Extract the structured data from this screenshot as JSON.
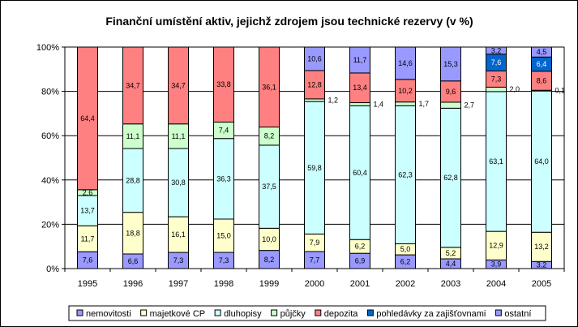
{
  "chart_data": {
    "type": "bar",
    "stacked": true,
    "percent_scale": true,
    "title": "Finanční umístění aktiv, jejichž zdrojem jsou technické rezervy (v %)",
    "xlabel": "",
    "ylabel": "",
    "ylim": [
      0,
      100
    ],
    "ytick_labels": [
      "0%",
      "20%",
      "40%",
      "60%",
      "80%",
      "100%"
    ],
    "grid": true,
    "legend": "bottom",
    "categories": [
      "1995",
      "1996",
      "1997",
      "1998",
      "1999",
      "2000",
      "2001",
      "2002",
      "2003",
      "2004",
      "2005"
    ],
    "series": [
      {
        "name": "nemovitosti",
        "color": "#9999ff",
        "values": [
          7.6,
          6.6,
          7.3,
          7.3,
          8.2,
          7.7,
          6.9,
          6.2,
          4.4,
          3.9,
          3.2
        ],
        "labels": [
          "7,6",
          "6,6",
          "7,3",
          "7,3",
          "8,2",
          "7,7",
          "6,9",
          "6,2",
          "4,4",
          "3,9",
          "3,2"
        ]
      },
      {
        "name": "majetkové CP",
        "color": "#ffffcc",
        "values": [
          11.7,
          18.8,
          16.1,
          15.0,
          10.0,
          7.9,
          6.2,
          5.0,
          5.2,
          12.9,
          13.2
        ],
        "labels": [
          "11,7",
          "18,8",
          "16,1",
          "15,0",
          "10,0",
          "7,9",
          "6,2",
          "5,0",
          "5,2",
          "12,9",
          "13,2"
        ]
      },
      {
        "name": "dluhopisy",
        "color": "#ccffff",
        "values": [
          13.7,
          28.8,
          30.8,
          36.3,
          37.5,
          59.8,
          60.4,
          62.3,
          62.8,
          63.1,
          64.0
        ],
        "labels": [
          "13,7",
          "28,8",
          "30,8",
          "36,3",
          "37,5",
          "59,8",
          "60,4",
          "62,3",
          "62,8",
          "63,1",
          "64,0"
        ]
      },
      {
        "name": "půjčky",
        "color": "#ccffcc",
        "values": [
          2.6,
          11.1,
          11.1,
          7.4,
          8.2,
          1.2,
          1.4,
          1.7,
          2.7,
          2.0,
          0.1
        ],
        "labels": [
          "2,6",
          "11,1",
          "11,1",
          "7,4",
          "8,2",
          "1,2",
          "1,4",
          "1,7",
          "2,7",
          "2,0",
          "0,1"
        ]
      },
      {
        "name": "depozita",
        "color": "#ff8080",
        "values": [
          64.4,
          34.7,
          34.7,
          33.8,
          36.1,
          12.8,
          13.4,
          10.2,
          9.6,
          7.3,
          8.6
        ],
        "labels": [
          "64,4",
          "34,7",
          "34,7",
          "33,8",
          "36,1",
          "12,8",
          "13,4",
          "10,2",
          "9,6",
          "7,3",
          "8,6"
        ]
      },
      {
        "name": "pohledávky za zajišťovnami",
        "color": "#0066cc",
        "values": [
          0,
          0,
          0,
          0,
          0,
          0,
          0,
          0,
          0,
          7.6,
          6.4
        ],
        "labels": [
          "",
          "",
          "",
          "",
          "",
          "",
          "",
          "",
          "",
          "7,6",
          "6,4"
        ]
      },
      {
        "name": "ostatní",
        "color": "#9999ff",
        "values": [
          0,
          0,
          0,
          0,
          0,
          10.6,
          11.7,
          14.6,
          15.3,
          3.2,
          4.5
        ],
        "labels": [
          "",
          "",
          "",
          "",
          "",
          "10,6",
          "11,7",
          "14,6",
          "15,3",
          "3,2",
          "4,5"
        ]
      }
    ]
  }
}
